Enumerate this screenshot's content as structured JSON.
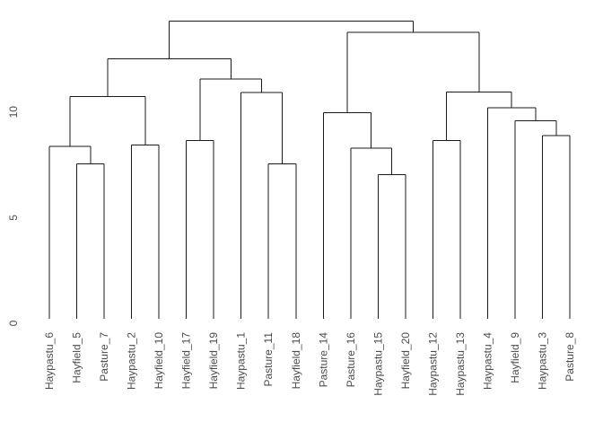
{
  "chart_data": {
    "type": "dendrogram",
    "title": "",
    "xlabel": "",
    "ylabel": "",
    "y_axis": {
      "ticks": [
        0,
        5,
        10
      ],
      "range": [
        0,
        14.8
      ]
    },
    "leaf_labels": [
      "Haypastu_6",
      "Hayfield_5",
      "Pasture_7",
      "Haypastu_2",
      "Hayfield_10",
      "Hayfield_17",
      "Hayfield_19",
      "Haypastu_1",
      "Pasture_11",
      "Hayfield_18",
      "Pasture_14",
      "Pasture_16",
      "Haypastu_15",
      "Hayfield_20",
      "Haypastu_12",
      "Haypastu_13",
      "Haypastu_4",
      "Hayfield_9",
      "Haypastu_3",
      "Pasture_8"
    ],
    "tree": {
      "h": 14.31,
      "children": [
        {
          "h": 12.51,
          "children": [
            {
              "h": 10.74,
              "children": [
                {
                  "h": 8.38,
                  "children": [
                    {
                      "leaf": 0
                    },
                    {
                      "h": 7.54,
                      "children": [
                        {
                          "leaf": 1
                        },
                        {
                          "leaf": 2
                        }
                      ]
                    }
                  ]
                },
                {
                  "h": 8.43,
                  "children": [
                    {
                      "leaf": 3
                    },
                    {
                      "leaf": 4
                    }
                  ]
                }
              ]
            },
            {
              "h": 11.55,
              "children": [
                {
                  "h": 8.64,
                  "children": [
                    {
                      "leaf": 5
                    },
                    {
                      "leaf": 6
                    }
                  ]
                },
                {
                  "h": 10.93,
                  "children": [
                    {
                      "leaf": 7
                    },
                    {
                      "h": 7.54,
                      "children": [
                        {
                          "leaf": 8
                        },
                        {
                          "leaf": 9
                        }
                      ]
                    }
                  ]
                }
              ]
            }
          ]
        },
        {
          "h": 13.78,
          "children": [
            {
              "h": 9.96,
              "children": [
                {
                  "leaf": 10
                },
                {
                  "h": 8.29,
                  "children": [
                    {
                      "leaf": 11
                    },
                    {
                      "h": 7.04,
                      "children": [
                        {
                          "leaf": 12
                        },
                        {
                          "leaf": 13
                        }
                      ]
                    }
                  ]
                }
              ]
            },
            {
              "h": 10.95,
              "children": [
                {
                  "h": 8.64,
                  "children": [
                    {
                      "leaf": 14
                    },
                    {
                      "leaf": 15
                    }
                  ]
                },
                {
                  "h": 10.2,
                  "children": [
                    {
                      "leaf": 16
                    },
                    {
                      "h": 9.59,
                      "children": [
                        {
                          "leaf": 17
                        },
                        {
                          "h": 8.88,
                          "children": [
                            {
                              "leaf": 18
                            },
                            {
                              "leaf": 19
                            }
                          ]
                        }
                      ]
                    }
                  ]
                }
              ]
            }
          ]
        }
      ]
    },
    "colors": {
      "line": "#1a1a1a",
      "text": "#4d4d4d",
      "background": "#ffffff"
    }
  }
}
